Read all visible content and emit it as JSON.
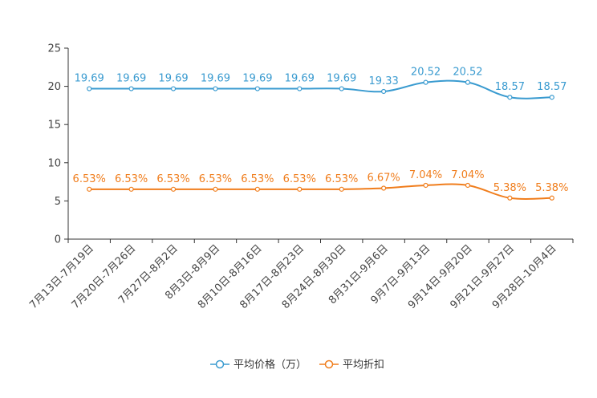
{
  "chart_data": {
    "type": "line",
    "title": "",
    "xlabel": "",
    "ylabel": "",
    "ylim": [
      0,
      25
    ],
    "yticks": [
      0,
      5,
      10,
      15,
      20,
      25
    ],
    "grid": false,
    "legend_position": "bottom-center",
    "categories": [
      "7月13日-7月19日",
      "7月20日-7月26日",
      "7月27日-8月2日",
      "8月3日-8月9日",
      "8月10日-8月16日",
      "8月17日-8月23日",
      "8月24日-8月30日",
      "8月31日-9月6日",
      "9月7日-9月13日",
      "9月14日-9月20日",
      "9月21日-9月27日",
      "9月28日-10月4日"
    ],
    "series": [
      {
        "name": "平均价格（万）",
        "color": "#3a9bd0",
        "values": [
          19.69,
          19.69,
          19.69,
          19.69,
          19.69,
          19.69,
          19.69,
          19.33,
          20.52,
          20.52,
          18.57,
          18.57
        ],
        "labels": [
          "19.69",
          "19.69",
          "19.69",
          "19.69",
          "19.69",
          "19.69",
          "19.69",
          "19.33",
          "20.52",
          "20.52",
          "18.57",
          "18.57"
        ]
      },
      {
        "name": "平均折扣",
        "color": "#f07d1c",
        "values": [
          6.53,
          6.53,
          6.53,
          6.53,
          6.53,
          6.53,
          6.53,
          6.67,
          7.04,
          7.04,
          5.38,
          5.38
        ],
        "labels": [
          "6.53%",
          "6.53%",
          "6.53%",
          "6.53%",
          "6.53%",
          "6.53%",
          "6.53%",
          "6.67%",
          "7.04%",
          "7.04%",
          "5.38%",
          "5.38%"
        ]
      }
    ]
  }
}
